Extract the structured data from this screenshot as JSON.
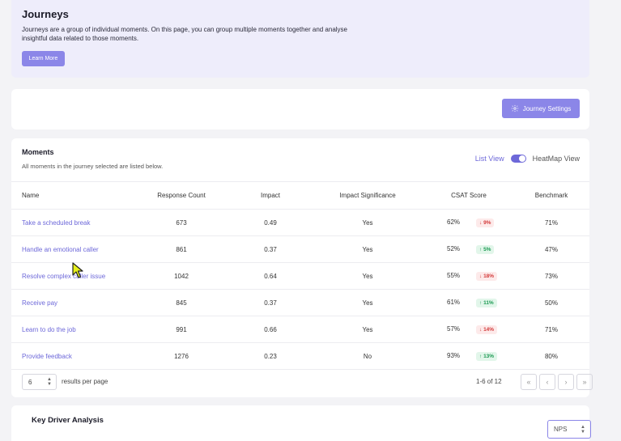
{
  "banner": {
    "title": "Journeys",
    "description": "Journeys are a group of individual moments. On this page, you can group multiple moments together and analyse insightful data related to those moments.",
    "learn_more": "Learn More"
  },
  "settings": {
    "button_label": "Journey Settings",
    "icon": "gear-icon"
  },
  "moments": {
    "title": "Moments",
    "subtitle": "All moments in the journey selected are listed below.",
    "list_view": "List View",
    "heatmap_view": "HeatMap View",
    "columns": [
      "Name",
      "Response Count",
      "Impact",
      "Impact Significance",
      "CSAT Score",
      "Benchmark"
    ],
    "rows": [
      {
        "name": "Take a scheduled break",
        "count": "673",
        "impact": "0.49",
        "significance": "Yes",
        "csat": "62%",
        "delta": "9%",
        "dir": "down",
        "benchmark": "71%"
      },
      {
        "name": "Handle an emotional caller",
        "count": "861",
        "impact": "0.37",
        "significance": "Yes",
        "csat": "52%",
        "delta": "5%",
        "dir": "up",
        "benchmark": "47%"
      },
      {
        "name": "Resolve complex caller issue",
        "count": "1042",
        "impact": "0.64",
        "significance": "Yes",
        "csat": "55%",
        "delta": "18%",
        "dir": "down",
        "benchmark": "73%"
      },
      {
        "name": "Receive pay",
        "count": "845",
        "impact": "0.37",
        "significance": "Yes",
        "csat": "61%",
        "delta": "11%",
        "dir": "up",
        "benchmark": "50%"
      },
      {
        "name": "Learn to do the job",
        "count": "991",
        "impact": "0.66",
        "significance": "Yes",
        "csat": "57%",
        "delta": "14%",
        "dir": "down",
        "benchmark": "71%"
      },
      {
        "name": "Provide feedback",
        "count": "1276",
        "impact": "0.23",
        "significance": "No",
        "csat": "93%",
        "delta": "13%",
        "dir": "up",
        "benchmark": "80%"
      }
    ],
    "pagination": {
      "per_page": "6",
      "per_page_label": "results per page",
      "range": "1-6 of 12"
    }
  },
  "kda": {
    "title": "Key Driver Analysis",
    "metric": "NPS"
  },
  "colors": {
    "accent": "#6d68d9",
    "button": "#8b86e8",
    "up": "#1c9a53",
    "down": "#d33b3b"
  }
}
